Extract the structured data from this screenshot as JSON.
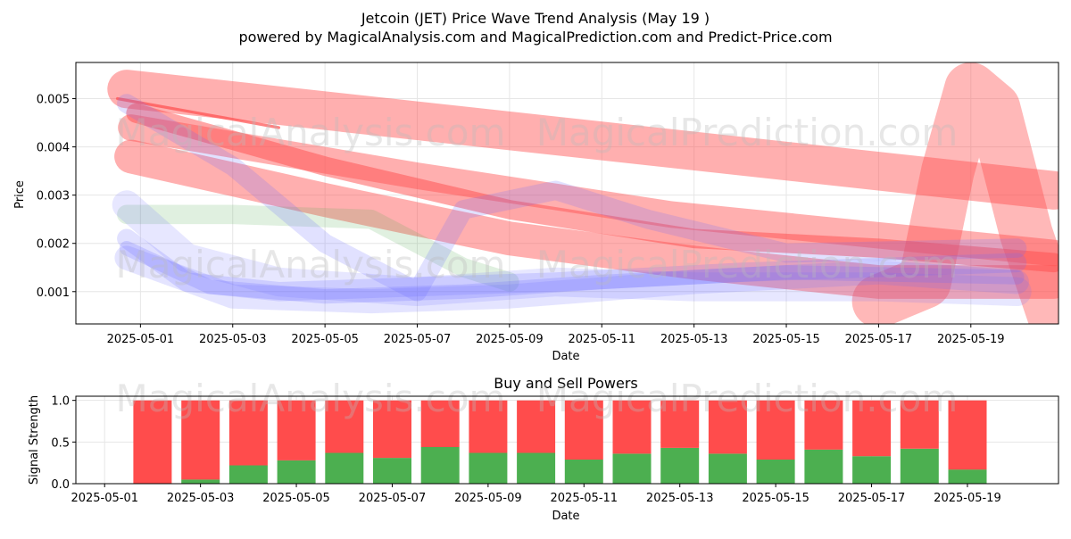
{
  "title_line1": "Jetcoin (JET) Price Wave Trend Analysis (May 19 )",
  "title_line2": "powered by MagicalAnalysis.com and MagicalPrediction.com and Predict-Price.com",
  "watermarks": [
    "MagicalAnalysis.com",
    "MagicalPrediction.com"
  ],
  "colors": {
    "red_band": "#ff4d4d",
    "blue_band": "#6b6bff",
    "green_band": "#55aa55",
    "buy": "#4caf50",
    "sell": "#ff4c4c",
    "grid": "#e6e6e6"
  },
  "chart_data": [
    {
      "type": "area",
      "title": "Jetcoin (JET) Price Wave Trend Analysis (May 19 )",
      "xlabel": "Date",
      "ylabel": "Price",
      "xlim": [
        "2025-04-29.6",
        "2025-05-19.9"
      ],
      "ylim": [
        0.00033,
        0.00575
      ],
      "x_ticks": [
        "2025-05-01",
        "2025-05-03",
        "2025-05-05",
        "2025-05-07",
        "2025-05-09",
        "2025-05-11",
        "2025-05-13",
        "2025-05-15",
        "2025-05-17",
        "2025-05-19"
      ],
      "y_ticks": [
        0.001,
        0.002,
        0.003,
        0.004,
        0.005
      ],
      "y_tick_labels": [
        "0.001",
        "0.002",
        "0.003",
        "0.004",
        "0.005"
      ],
      "grid": true,
      "series": [
        {
          "name": "red-wave-1",
          "color": "red",
          "opacity": 0.45,
          "width": 0.0008,
          "points": [
            [
              -0.3,
              0.0052
            ],
            [
              19.8,
              0.0031
            ]
          ]
        },
        {
          "name": "red-wave-2",
          "color": "red",
          "opacity": 0.45,
          "width": 0.00055,
          "points": [
            [
              -0.2,
              0.0044
            ],
            [
              6.0,
              0.0034
            ],
            [
              11.5,
              0.0026
            ],
            [
              19.8,
              0.0018
            ]
          ]
        },
        {
          "name": "red-wave-3",
          "color": "red",
          "opacity": 0.45,
          "width": 0.0007,
          "points": [
            [
              -0.2,
              0.0038
            ],
            [
              4.0,
              0.0029
            ],
            [
              8.0,
              0.0021
            ],
            [
              12.0,
              0.0016
            ],
            [
              16.0,
              0.0012
            ],
            [
              19.8,
              0.0012
            ]
          ]
        },
        {
          "name": "red-wave-4",
          "color": "red",
          "opacity": 0.5,
          "width": 0.0004,
          "points": [
            [
              -0.1,
              0.0047
            ],
            [
              4.0,
              0.0036
            ],
            [
              8.0,
              0.0027
            ],
            [
              12.0,
              0.0021
            ],
            [
              16.0,
              0.0019
            ],
            [
              19.8,
              0.0016
            ]
          ]
        },
        {
          "name": "red-wave-5",
          "color": "red",
          "opacity": 0.4,
          "width": 0.0011,
          "points": [
            [
              16.0,
              0.0008
            ],
            [
              17.0,
              0.0012
            ],
            [
              17.5,
              0.0035
            ],
            [
              18.0,
              0.0052
            ],
            [
              18.5,
              0.0048
            ],
            [
              19.2,
              0.0022
            ],
            [
              19.8,
              0.0005
            ]
          ]
        },
        {
          "name": "red-line",
          "color": "red",
          "opacity": 0.7,
          "width": 6e-05,
          "points": [
            [
              -0.5,
              0.005
            ],
            [
              3.0,
              0.0044
            ]
          ]
        },
        {
          "name": "green-wave",
          "color": "green",
          "opacity": 0.18,
          "width": 0.0004,
          "points": [
            [
              -0.3,
              0.0026
            ],
            [
              2.0,
              0.0026
            ],
            [
              5.0,
              0.0025
            ],
            [
              6.0,
              0.002
            ],
            [
              7.0,
              0.0015
            ],
            [
              8.0,
              0.0012
            ]
          ]
        },
        {
          "name": "blue-wave-1",
          "color": "blue",
          "opacity": 0.2,
          "width": 0.0004,
          "points": [
            [
              -0.3,
              0.0021
            ],
            [
              1.0,
              0.0012
            ],
            [
              3.0,
              0.001
            ],
            [
              6.0,
              0.0011
            ],
            [
              9.0,
              0.0012
            ],
            [
              13.0,
              0.0014
            ],
            [
              16.0,
              0.0015
            ],
            [
              19.0,
              0.0016
            ]
          ]
        },
        {
          "name": "blue-wave-2",
          "color": "blue",
          "opacity": 0.22,
          "width": 0.0003,
          "points": [
            [
              -0.3,
              0.0019
            ],
            [
              1.5,
              0.0011
            ],
            [
              4.0,
              0.0009
            ],
            [
              7.0,
              0.001
            ],
            [
              10.0,
              0.0012
            ],
            [
              14.0,
              0.0014
            ],
            [
              19.0,
              0.0013
            ]
          ]
        },
        {
          "name": "blue-wave-3",
          "color": "blue",
          "opacity": 0.18,
          "width": 0.0005,
          "points": [
            [
              -0.3,
              0.0017
            ],
            [
              2.0,
              0.0009
            ],
            [
              5.0,
              0.0008
            ],
            [
              8.0,
              0.0009
            ],
            [
              12.0,
              0.0012
            ],
            [
              16.0,
              0.0014
            ],
            [
              19.0,
              0.0012
            ]
          ]
        },
        {
          "name": "blue-wave-4",
          "color": "blue",
          "opacity": 0.2,
          "width": 0.0004,
          "points": [
            [
              -0.3,
              0.0049
            ],
            [
              2.0,
              0.0036
            ],
            [
              4.0,
              0.002
            ],
            [
              6.0,
              0.001
            ],
            [
              7.0,
              0.0027
            ],
            [
              9.0,
              0.0031
            ],
            [
              11.0,
              0.0025
            ],
            [
              14.0,
              0.0018
            ],
            [
              19.0,
              0.0019
            ]
          ]
        },
        {
          "name": "blue-wave-5",
          "color": "blue",
          "opacity": 0.16,
          "width": 0.0006,
          "points": [
            [
              -0.3,
              0.0028
            ],
            [
              1.0,
              0.0017
            ],
            [
              3.0,
              0.0012
            ],
            [
              6.0,
              0.001
            ],
            [
              9.0,
              0.0012
            ],
            [
              12.0,
              0.0011
            ],
            [
              16.0,
              0.0011
            ],
            [
              19.0,
              0.001
            ]
          ]
        }
      ]
    },
    {
      "type": "bar",
      "title": "Buy and Sell Powers",
      "xlabel": "Date",
      "ylabel": "Signal Strength",
      "ylim": [
        0,
        1.05
      ],
      "y_ticks": [
        0.0,
        0.5,
        1.0
      ],
      "y_tick_labels": [
        "0.0",
        "0.5",
        "1.0"
      ],
      "x_ticks": [
        "2025-05-01",
        "2025-05-03",
        "2025-05-05",
        "2025-05-07",
        "2025-05-09",
        "2025-05-11",
        "2025-05-13",
        "2025-05-15",
        "2025-05-17",
        "2025-05-19"
      ],
      "grid": true,
      "categories": [
        "2025-05-02",
        "2025-05-03",
        "2025-05-04",
        "2025-05-05",
        "2025-05-06",
        "2025-05-07",
        "2025-05-08",
        "2025-05-09",
        "2025-05-10",
        "2025-05-11",
        "2025-05-12",
        "2025-05-13",
        "2025-05-14",
        "2025-05-15",
        "2025-05-16",
        "2025-05-17",
        "2025-05-18",
        "2025-05-19"
      ],
      "series": [
        {
          "name": "Buy",
          "values": [
            0.0,
            0.05,
            0.22,
            0.28,
            0.37,
            0.31,
            0.44,
            0.37,
            0.37,
            0.29,
            0.36,
            0.43,
            0.36,
            0.29,
            0.41,
            0.33,
            0.42,
            0.17
          ]
        },
        {
          "name": "Sell",
          "values": [
            1.0,
            0.95,
            0.78,
            0.72,
            0.63,
            0.69,
            0.56,
            0.63,
            0.63,
            0.71,
            0.64,
            0.57,
            0.64,
            0.71,
            0.59,
            0.67,
            0.58,
            0.83
          ]
        }
      ]
    }
  ]
}
